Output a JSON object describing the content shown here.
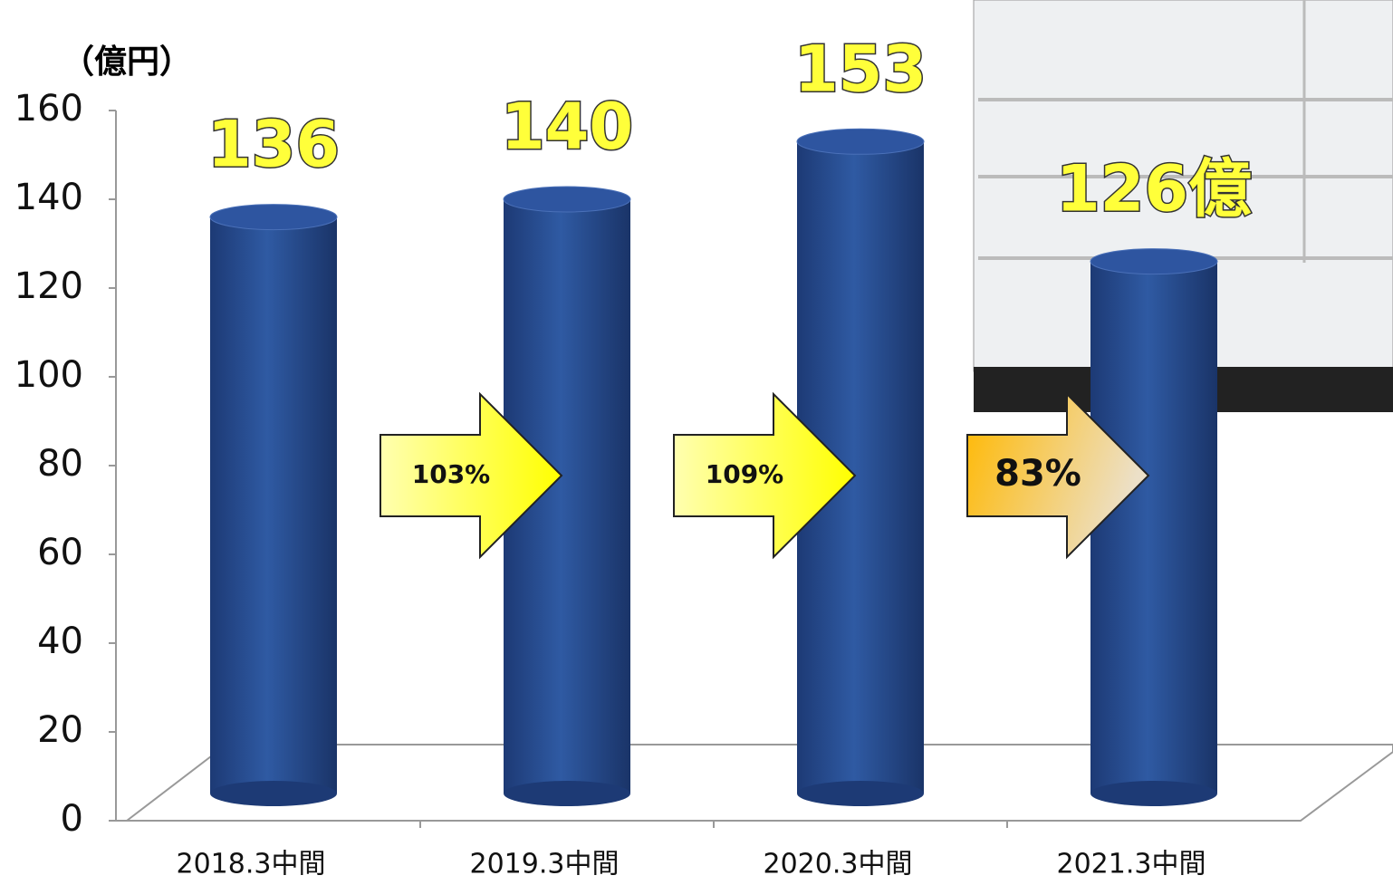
{
  "chart_data": {
    "type": "bar",
    "y_label": "（億円）",
    "categories": [
      "2018.3中間",
      "2019.3中間",
      "2020.3中間",
      "2021.3中間"
    ],
    "values": [
      136,
      140,
      153,
      126
    ],
    "value_labels": [
      "136",
      "140",
      "153",
      "126億"
    ],
    "color": "#2a4f94",
    "ylim": [
      0,
      160
    ],
    "yticks": [
      0,
      20,
      40,
      60,
      80,
      100,
      120,
      140,
      160
    ],
    "annotations": [
      "103%",
      "109%",
      "83%"
    ]
  }
}
